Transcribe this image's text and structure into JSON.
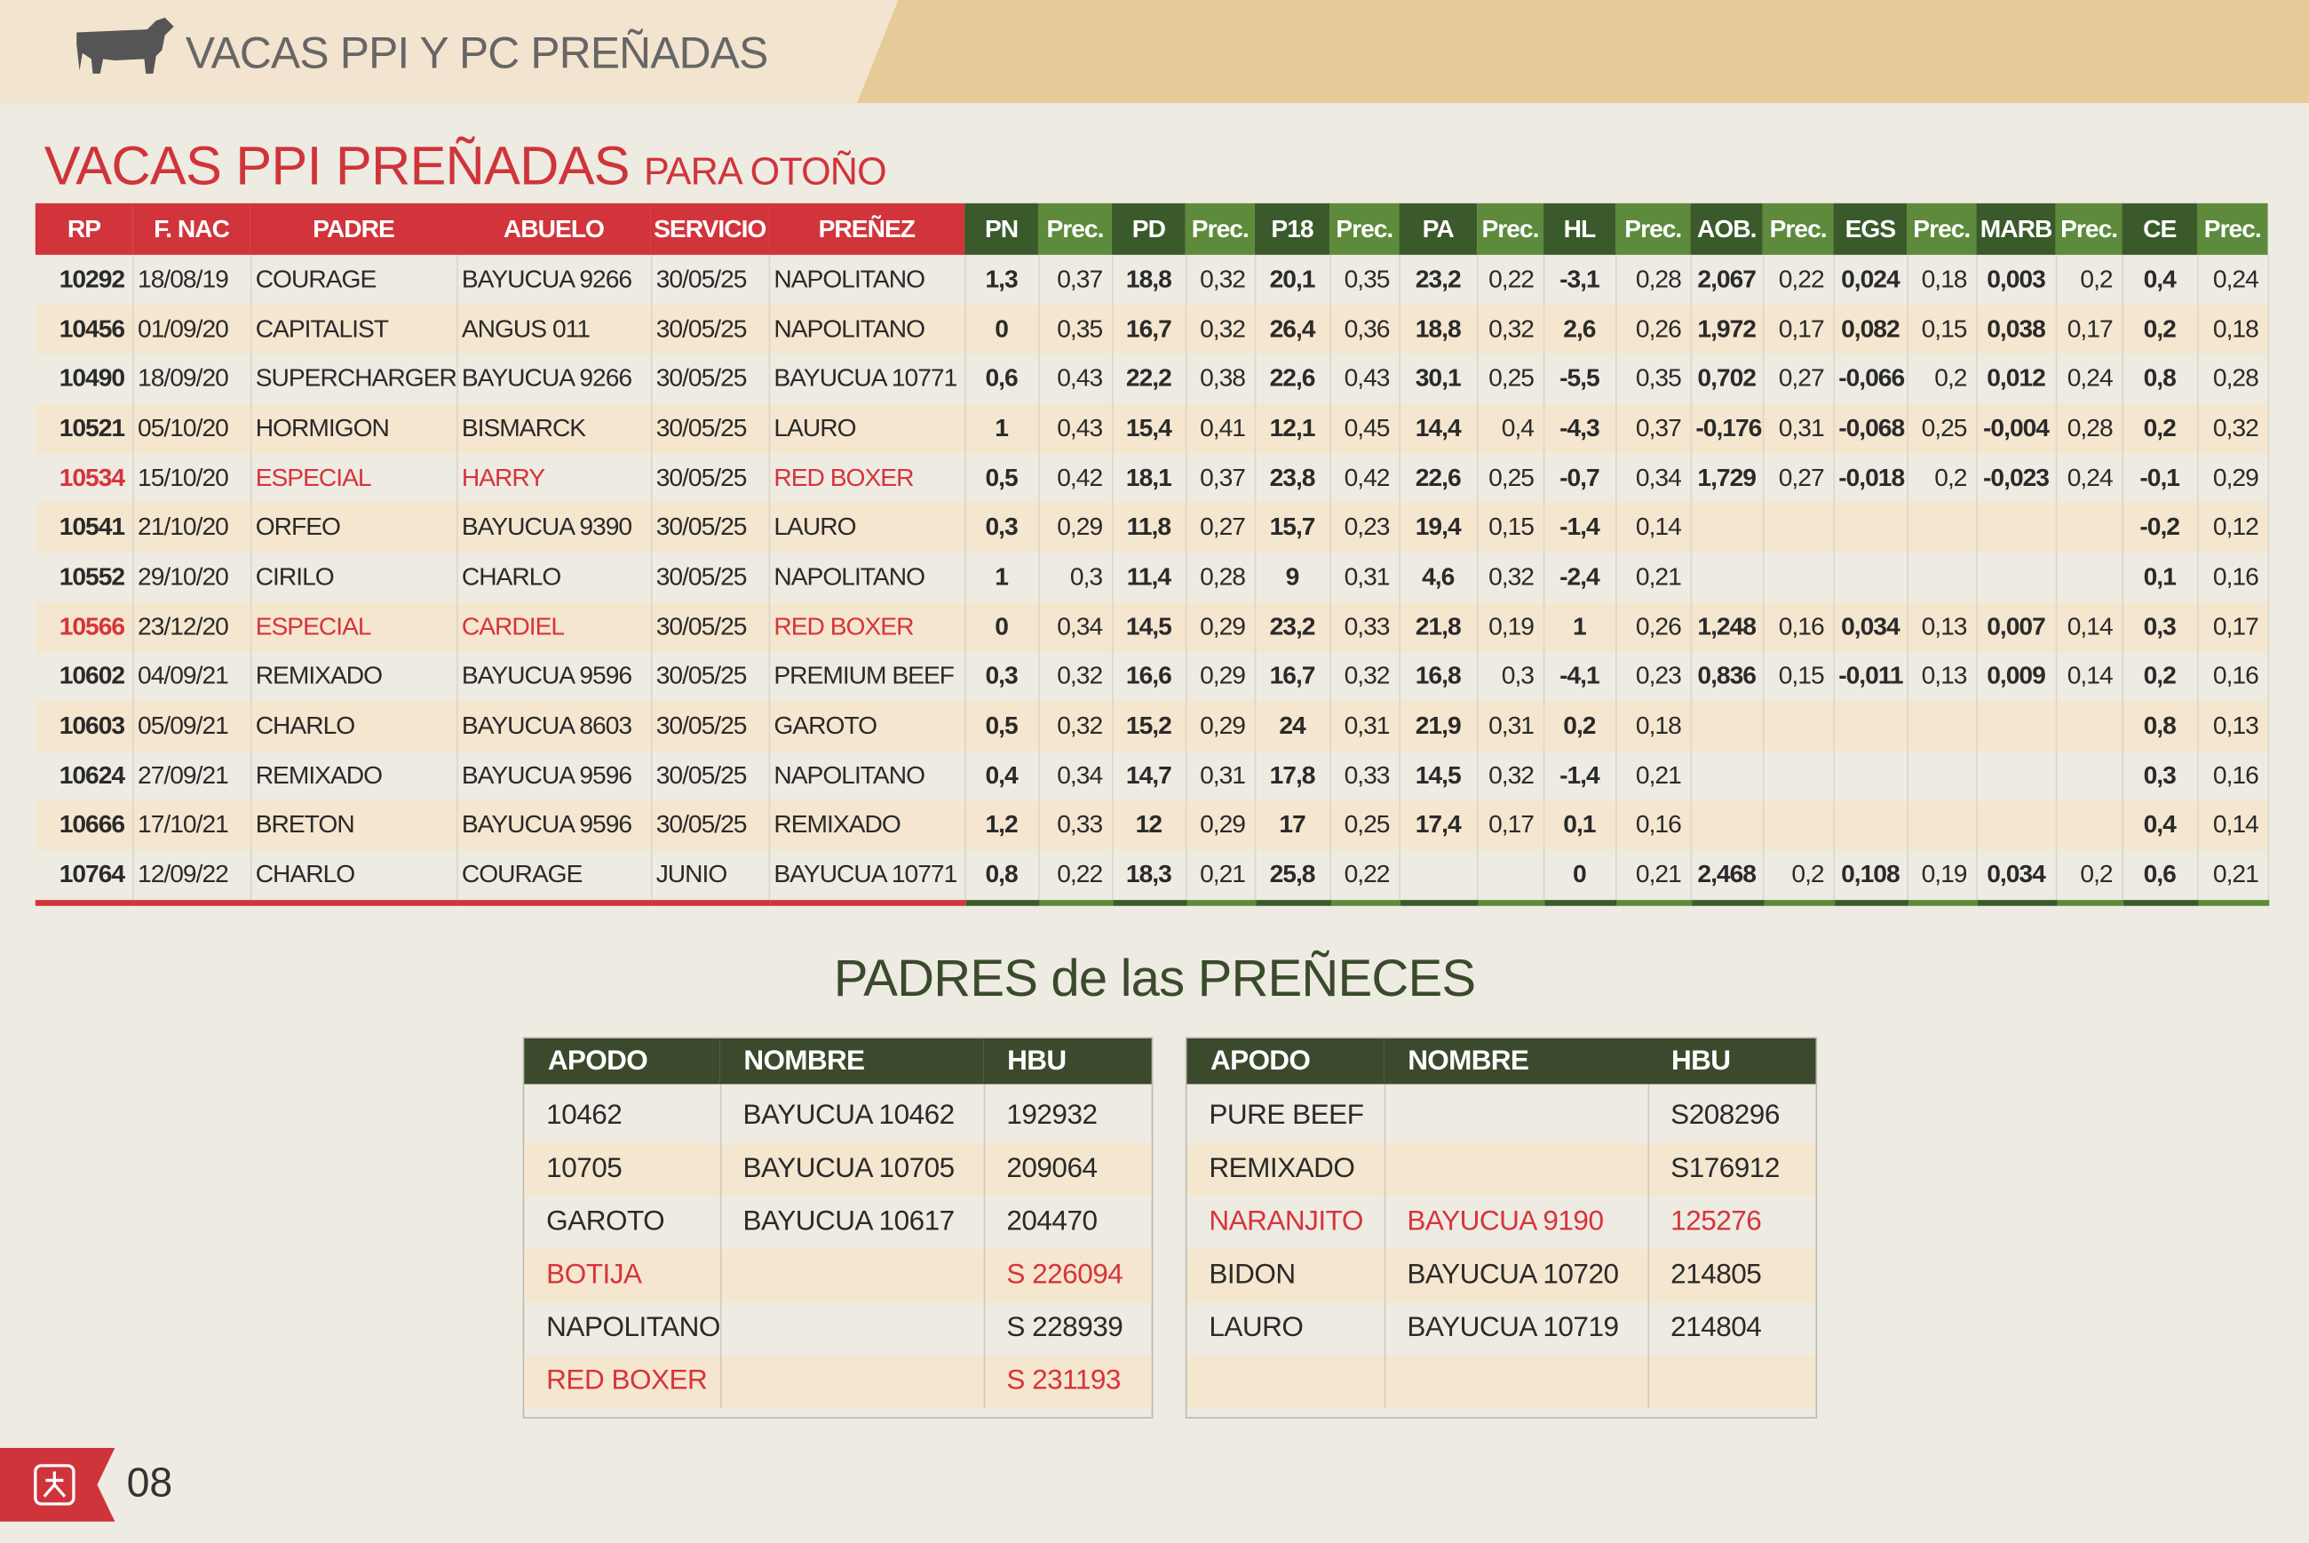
{
  "header": {
    "title": "VACAS PPI Y PC PREÑADAS"
  },
  "section": {
    "title": "VACAS PPI PREÑADAS",
    "subtitle": "PARA OTOÑO",
    "table": {
      "columns": [
        "RP",
        "F. NAC",
        "PADRE",
        "ABUELO",
        "SERVICIO",
        "PREÑEZ",
        "PN",
        "Prec.",
        "PD",
        "Prec.",
        "P18",
        "Prec.",
        "PA",
        "Prec.",
        "HL",
        "Prec.",
        "AOB.",
        "Prec.",
        "EGS",
        "Prec.",
        "MARB",
        "Prec.",
        "CE",
        "Prec."
      ],
      "rows": [
        [
          "10292",
          "18/08/19",
          "COURAGE",
          "BAYUCUA 9266",
          "30/05/25",
          "NAPOLITANO",
          "1,3",
          "0,37",
          "18,8",
          "0,32",
          "20,1",
          "0,35",
          "23,2",
          "0,22",
          "-3,1",
          "0,28",
          "2,067",
          "0,22",
          "0,024",
          "0,18",
          "0,003",
          "0,2",
          "0,4",
          "0,24"
        ],
        [
          "10456",
          "01/09/20",
          "CAPITALIST",
          "ANGUS 011",
          "30/05/25",
          "NAPOLITANO",
          "0",
          "0,35",
          "16,7",
          "0,32",
          "26,4",
          "0,36",
          "18,8",
          "0,32",
          "2,6",
          "0,26",
          "1,972",
          "0,17",
          "0,082",
          "0,15",
          "0,038",
          "0,17",
          "0,2",
          "0,18"
        ],
        [
          "10490",
          "18/09/20",
          "SUPERCHARGER",
          "BAYUCUA 9266",
          "30/05/25",
          "BAYUCUA 10771",
          "0,6",
          "0,43",
          "22,2",
          "0,38",
          "22,6",
          "0,43",
          "30,1",
          "0,25",
          "-5,5",
          "0,35",
          "0,702",
          "0,27",
          "-0,066",
          "0,2",
          "0,012",
          "0,24",
          "0,8",
          "0,28"
        ],
        [
          "10521",
          "05/10/20",
          "HORMIGON",
          "BISMARCK",
          "30/05/25",
          "LAURO",
          "1",
          "0,43",
          "15,4",
          "0,41",
          "12,1",
          "0,45",
          "14,4",
          "0,4",
          "-4,3",
          "0,37",
          "-0,176",
          "0,31",
          "-0,068",
          "0,25",
          "-0,004",
          "0,28",
          "0,2",
          "0,32"
        ],
        [
          "10534",
          "15/10/20",
          "ESPECIAL",
          "HARRY",
          "30/05/25",
          "RED BOXER",
          "0,5",
          "0,42",
          "18,1",
          "0,37",
          "23,8",
          "0,42",
          "22,6",
          "0,25",
          "-0,7",
          "0,34",
          "1,729",
          "0,27",
          "-0,018",
          "0,2",
          "-0,023",
          "0,24",
          "-0,1",
          "0,29"
        ],
        [
          "10541",
          "21/10/20",
          "ORFEO",
          "BAYUCUA 9390",
          "30/05/25",
          "LAURO",
          "0,3",
          "0,29",
          "11,8",
          "0,27",
          "15,7",
          "0,23",
          "19,4",
          "0,15",
          "-1,4",
          "0,14",
          null,
          null,
          null,
          null,
          null,
          null,
          "-0,2",
          "0,12"
        ],
        [
          "10552",
          "29/10/20",
          "CIRILO",
          "CHARLO",
          "30/05/25",
          "NAPOLITANO",
          "1",
          "0,3",
          "11,4",
          "0,28",
          "9",
          "0,31",
          "4,6",
          "0,32",
          "-2,4",
          "0,21",
          null,
          null,
          null,
          null,
          null,
          null,
          "0,1",
          "0,16"
        ],
        [
          "10566",
          "23/12/20",
          "ESPECIAL",
          "CARDIEL",
          "30/05/25",
          "RED BOXER",
          "0",
          "0,34",
          "14,5",
          "0,29",
          "23,2",
          "0,33",
          "21,8",
          "0,19",
          "1",
          "0,26",
          "1,248",
          "0,16",
          "0,034",
          "0,13",
          "0,007",
          "0,14",
          "0,3",
          "0,17"
        ],
        [
          "10602",
          "04/09/21",
          "REMIXADO",
          "BAYUCUA 9596",
          "30/05/25",
          "PREMIUM BEEF",
          "0,3",
          "0,32",
          "16,6",
          "0,29",
          "16,7",
          "0,32",
          "16,8",
          "0,3",
          "-4,1",
          "0,23",
          "0,836",
          "0,15",
          "-0,011",
          "0,13",
          "0,009",
          "0,14",
          "0,2",
          "0,16"
        ],
        [
          "10603",
          "05/09/21",
          "CHARLO",
          "BAYUCUA 8603",
          "30/05/25",
          "GAROTO",
          "0,5",
          "0,32",
          "15,2",
          "0,29",
          "24",
          "0,31",
          "21,9",
          "0,31",
          "0,2",
          "0,18",
          null,
          null,
          null,
          null,
          null,
          null,
          "0,8",
          "0,13"
        ],
        [
          "10624",
          "27/09/21",
          "REMIXADO",
          "BAYUCUA 9596",
          "30/05/25",
          "NAPOLITANO",
          "0,4",
          "0,34",
          "14,7",
          "0,31",
          "17,8",
          "0,33",
          "14,5",
          "0,32",
          "-1,4",
          "0,21",
          null,
          null,
          null,
          null,
          null,
          null,
          "0,3",
          "0,16"
        ],
        [
          "10666",
          "17/10/21",
          "BRETON",
          "BAYUCUA 9596",
          "30/05/25",
          "REMIXADO",
          "1,2",
          "0,33",
          "12",
          "0,29",
          "17",
          "0,25",
          "17,4",
          "0,17",
          "0,1",
          "0,16",
          null,
          null,
          null,
          null,
          null,
          null,
          "0,4",
          "0,14"
        ],
        [
          "10764",
          "12/09/22",
          "CHARLO",
          "COURAGE",
          "JUNIO",
          "BAYUCUA 10771",
          "0,8",
          "0,22",
          "18,3",
          "0,21",
          "25,8",
          "0,22",
          null,
          null,
          "0",
          "0,21",
          "2,468",
          "0,2",
          "0,108",
          "0,19",
          "0,034",
          "0,2",
          "0,6",
          "0,21"
        ]
      ],
      "highlight": {
        "rows": [
          4,
          7
        ],
        "columns": [
          0,
          2,
          3,
          5
        ],
        "color": "#d6343c"
      }
    }
  },
  "padres": {
    "title": "PADRES de las PREÑECES",
    "tables": [
      {
        "columns": [
          "APODO",
          "NOMBRE",
          "HBU"
        ],
        "rows": [
          [
            "10462",
            "BAYUCUA 10462",
            "192932"
          ],
          [
            "10705",
            "BAYUCUA 10705",
            "209064"
          ],
          [
            "GAROTO",
            "BAYUCUA 10617",
            "204470"
          ],
          [
            "BOTIJA",
            null,
            "S 226094"
          ],
          [
            "NAPOLITANO",
            null,
            "S 228939"
          ],
          [
            "RED BOXER",
            null,
            "S 231193"
          ]
        ],
        "highlight_rows": [
          3,
          5
        ]
      },
      {
        "columns": [
          "APODO",
          "NOMBRE",
          "HBU"
        ],
        "rows": [
          [
            "PURE BEEF",
            null,
            "S208296"
          ],
          [
            "REMIXADO",
            null,
            "S176912"
          ],
          [
            "NARANJITO",
            "BAYUCUA 9190",
            "125276"
          ],
          [
            "BIDON",
            "BAYUCUA 10720",
            "214805"
          ],
          [
            "LAURO",
            "BAYUCUA 10719",
            "214804"
          ],
          [
            null,
            null,
            null
          ]
        ],
        "highlight_rows": [
          2
        ]
      }
    ]
  },
  "footer": {
    "page": "08"
  }
}
